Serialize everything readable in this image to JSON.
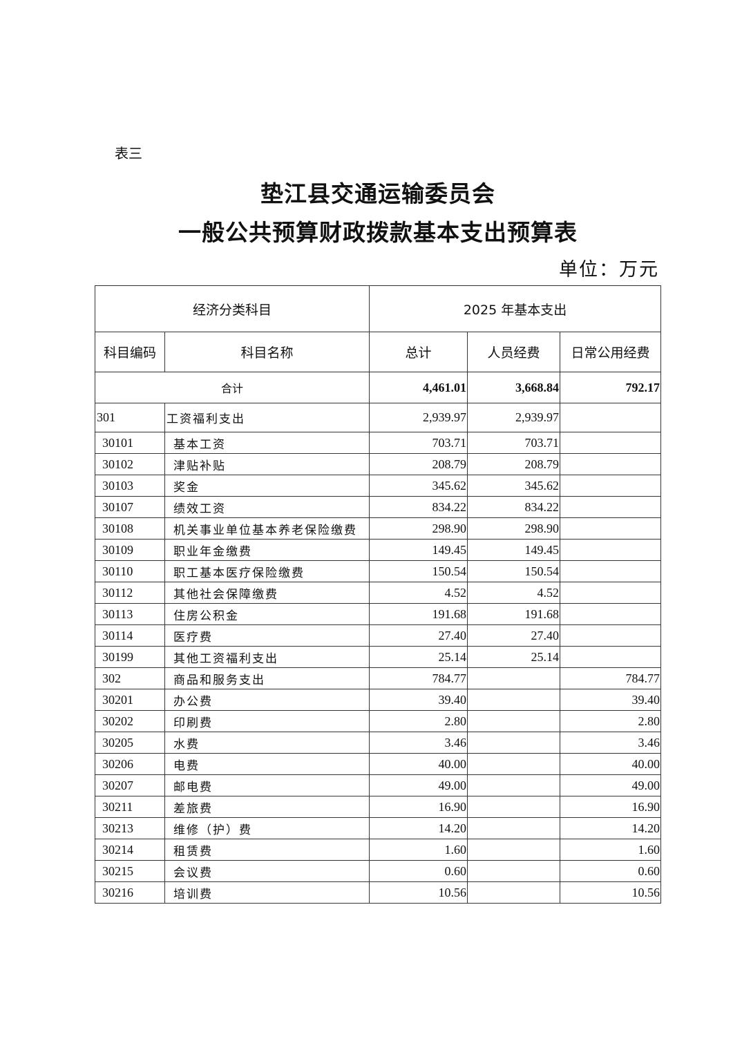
{
  "doc_label": "表三",
  "title_line1": "垫江县交通运输委员会",
  "title_line2": "一般公共预算财政拨款基本支出预算表",
  "unit": "单位：万元",
  "table": {
    "header_group_left": "经济分类科目",
    "header_group_right": "2025 年基本支出",
    "columns": [
      "科目编码",
      "科目名称",
      "总计",
      "人员经费",
      "日常公用经费"
    ],
    "total": {
      "label": "合计",
      "total": "4,461.01",
      "personnel": "3,668.84",
      "public": "792.17"
    },
    "rows": [
      {
        "type": "grp",
        "code": "301",
        "name": "工资福利支出",
        "total": "2,939.97",
        "personnel": "2,939.97",
        "public": ""
      },
      {
        "type": "row",
        "code": "30101",
        "name": "基本工资",
        "total": "703.71",
        "personnel": "703.71",
        "public": ""
      },
      {
        "type": "row",
        "code": "30102",
        "name": "津贴补贴",
        "total": "208.79",
        "personnel": "208.79",
        "public": ""
      },
      {
        "type": "row",
        "code": "30103",
        "name": "奖金",
        "total": "345.62",
        "personnel": "345.62",
        "public": ""
      },
      {
        "type": "row",
        "code": "30107",
        "name": "绩效工资",
        "total": "834.22",
        "personnel": "834.22",
        "public": ""
      },
      {
        "type": "row",
        "code": "30108",
        "name": "机关事业单位基本养老保险缴费",
        "total": "298.90",
        "personnel": "298.90",
        "public": ""
      },
      {
        "type": "row",
        "code": "30109",
        "name": "职业年金缴费",
        "total": "149.45",
        "personnel": "149.45",
        "public": ""
      },
      {
        "type": "row",
        "code": "30110",
        "name": "职工基本医疗保险缴费",
        "total": "150.54",
        "personnel": "150.54",
        "public": ""
      },
      {
        "type": "row",
        "code": "30112",
        "name": "其他社会保障缴费",
        "total": "4.52",
        "personnel": "4.52",
        "public": ""
      },
      {
        "type": "row",
        "code": "30113",
        "name": "住房公积金",
        "total": "191.68",
        "personnel": "191.68",
        "public": ""
      },
      {
        "type": "row",
        "code": "30114",
        "name": "医疗费",
        "total": "27.40",
        "personnel": "27.40",
        "public": ""
      },
      {
        "type": "row",
        "code": "30199",
        "name": "其他工资福利支出",
        "total": "25.14",
        "personnel": "25.14",
        "public": ""
      },
      {
        "type": "row",
        "code": "302",
        "name": "商品和服务支出",
        "total": "784.77",
        "personnel": "",
        "public": "784.77"
      },
      {
        "type": "row",
        "code": "30201",
        "name": "办公费",
        "total": "39.40",
        "personnel": "",
        "public": "39.40"
      },
      {
        "type": "row",
        "code": "30202",
        "name": "印刷费",
        "total": "2.80",
        "personnel": "",
        "public": "2.80"
      },
      {
        "type": "row",
        "code": "30205",
        "name": "水费",
        "total": "3.46",
        "personnel": "",
        "public": "3.46"
      },
      {
        "type": "row",
        "code": "30206",
        "name": "电费",
        "total": "40.00",
        "personnel": "",
        "public": "40.00"
      },
      {
        "type": "row",
        "code": "30207",
        "name": "邮电费",
        "total": "49.00",
        "personnel": "",
        "public": "49.00"
      },
      {
        "type": "row",
        "code": "30211",
        "name": "差旅费",
        "total": "16.90",
        "personnel": "",
        "public": "16.90"
      },
      {
        "type": "row",
        "code": "30213",
        "name": "维修（护）费",
        "total": "14.20",
        "personnel": "",
        "public": "14.20"
      },
      {
        "type": "row",
        "code": "30214",
        "name": "租赁费",
        "total": "1.60",
        "personnel": "",
        "public": "1.60"
      },
      {
        "type": "row",
        "code": "30215",
        "name": "会议费",
        "total": "0.60",
        "personnel": "",
        "public": "0.60"
      },
      {
        "type": "row",
        "code": "30216",
        "name": "培训费",
        "total": "10.56",
        "personnel": "",
        "public": "10.56"
      }
    ]
  }
}
